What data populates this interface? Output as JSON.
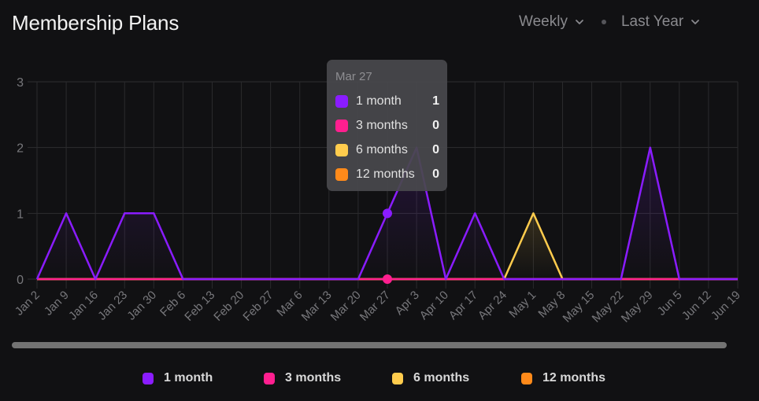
{
  "header": {
    "title": "Membership Plans",
    "period_select": "Weekly",
    "range_select": "Last Year"
  },
  "tooltip": {
    "date": "Mar 27",
    "rows": [
      {
        "label": "1 month",
        "value": "1",
        "color": "#8a1cff"
      },
      {
        "label": "3 months",
        "value": "0",
        "color": "#ff1f8f"
      },
      {
        "label": "6 months",
        "value": "0",
        "color": "#ffcc4d"
      },
      {
        "label": "12 months",
        "value": "0",
        "color": "#ff8a1a"
      }
    ]
  },
  "chart_data": {
    "type": "area",
    "title": "Membership Plans",
    "xlabel": "",
    "ylabel": "",
    "ylim": [
      0,
      3
    ],
    "yticks": [
      "0",
      "1",
      "2",
      "3"
    ],
    "grid": true,
    "legend_position": "bottom",
    "categories": [
      "Jan 2",
      "Jan 9",
      "Jan 16",
      "Jan 23",
      "Jan 30",
      "Feb 6",
      "Feb 13",
      "Feb 20",
      "Feb 27",
      "Mar 6",
      "Mar 13",
      "Mar 20",
      "Mar 27",
      "Apr 3",
      "Apr 10",
      "Apr 17",
      "Apr 24",
      "May 1",
      "May 8",
      "May 15",
      "May 22",
      "May 29",
      "Jun 5",
      "Jun 12",
      "Jun 19"
    ],
    "series": [
      {
        "name": "12 months",
        "color": "#ff8a1a",
        "values": [
          0,
          0,
          0,
          0,
          0,
          0,
          0,
          0,
          0,
          0,
          0,
          0,
          0,
          0,
          0,
          0,
          0,
          0,
          0,
          0,
          0,
          0,
          0,
          0,
          0
        ]
      },
      {
        "name": "6 months",
        "color": "#ffcc4d",
        "values": [
          0,
          0,
          0,
          0,
          0,
          0,
          0,
          0,
          0,
          0,
          0,
          0,
          0,
          0,
          0,
          0,
          0,
          1,
          0,
          0,
          0,
          0,
          0,
          0,
          0
        ]
      },
      {
        "name": "3 months",
        "color": "#ff1f8f",
        "values": [
          0,
          0,
          0,
          0,
          0,
          0,
          0,
          0,
          0,
          0,
          0,
          0,
          0,
          0,
          0,
          0,
          0,
          0,
          0,
          0,
          0,
          0,
          0,
          0,
          0
        ]
      },
      {
        "name": "1 month",
        "color": "#8a1cff",
        "values": [
          0,
          1,
          0,
          1,
          1,
          0,
          0,
          0,
          0,
          0,
          0,
          0,
          1,
          2,
          0,
          1,
          0,
          0,
          0,
          0,
          0,
          2,
          0,
          0,
          0
        ]
      }
    ],
    "highlight_index": 12
  },
  "legend": [
    {
      "label": "1 month",
      "color": "#8a1cff"
    },
    {
      "label": "3 months",
      "color": "#ff1f8f"
    },
    {
      "label": "6 months",
      "color": "#ffcc4d"
    },
    {
      "label": "12 months",
      "color": "#ff8a1a"
    }
  ]
}
